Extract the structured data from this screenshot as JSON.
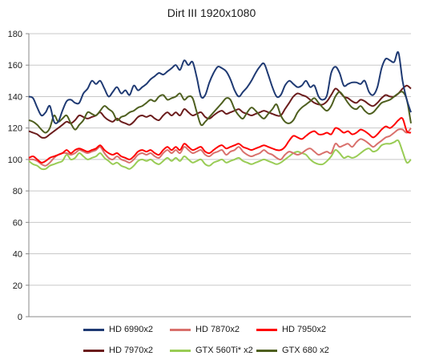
{
  "chart_data": {
    "type": "line",
    "title": "Dirt III 1920x1080",
    "xlabel": "",
    "ylabel": "",
    "ylim": [
      0,
      180
    ],
    "yticks": [
      0,
      20,
      40,
      60,
      80,
      100,
      120,
      140,
      160,
      180
    ],
    "grid": true,
    "legend_position": "bottom",
    "series": [
      {
        "name": "HD 6990x2",
        "color": "#1f3a73",
        "values": [
          140,
          139,
          133,
          128,
          130,
          134,
          124,
          124,
          131,
          137,
          138,
          136,
          136,
          142,
          145,
          150,
          148,
          150,
          145,
          140,
          143,
          146,
          142,
          144,
          141,
          147,
          144,
          146,
          148,
          151,
          153,
          155,
          154,
          156,
          158,
          160,
          157,
          163,
          160,
          162,
          152,
          140,
          141,
          149,
          155,
          159,
          158,
          156,
          151,
          144,
          140,
          143,
          146,
          150,
          155,
          159,
          161,
          154,
          146,
          140,
          141,
          147,
          150,
          148,
          146,
          147,
          150,
          146,
          147,
          140,
          138,
          141,
          155,
          159,
          155,
          147,
          148,
          149,
          149,
          148,
          150,
          143,
          141,
          146,
          158,
          164,
          163,
          162,
          168,
          150,
          138,
          130
        ]
      },
      {
        "name": "HD 7870x2",
        "color": "#d9706c",
        "values": [
          100,
          100,
          99,
          97,
          96,
          98,
          101,
          103,
          104,
          104,
          103,
          104,
          106,
          105,
          104,
          105,
          106,
          108,
          104,
          101,
          100,
          102,
          100,
          99,
          98,
          100,
          103,
          104,
          103,
          104,
          102,
          101,
          104,
          106,
          104,
          106,
          104,
          108,
          106,
          104,
          105,
          106,
          103,
          102,
          104,
          105,
          106,
          103,
          105,
          106,
          108,
          105,
          103,
          102,
          103,
          104,
          106,
          104,
          103,
          101,
          100,
          103,
          105,
          104,
          103,
          104,
          106,
          107,
          105,
          103,
          104,
          105,
          104,
          110,
          108,
          109,
          110,
          108,
          111,
          113,
          112,
          110,
          108,
          110,
          112,
          114,
          115,
          117,
          119,
          119,
          117,
          120
        ]
      },
      {
        "name": "HD 7950x2",
        "color": "#ff0000",
        "values": [
          101,
          102,
          100,
          98,
          99,
          101,
          102,
          103,
          104,
          106,
          104,
          106,
          107,
          106,
          105,
          106,
          107,
          109,
          106,
          104,
          103,
          104,
          102,
          101,
          100,
          102,
          105,
          106,
          105,
          106,
          104,
          103,
          106,
          108,
          106,
          108,
          106,
          110,
          108,
          106,
          107,
          108,
          105,
          104,
          106,
          108,
          109,
          107,
          108,
          109,
          110,
          108,
          107,
          106,
          107,
          108,
          109,
          108,
          107,
          106,
          106,
          108,
          112,
          115,
          114,
          113,
          115,
          117,
          118,
          116,
          116,
          117,
          116,
          120,
          119,
          117,
          118,
          116,
          117,
          119,
          118,
          116,
          114,
          116,
          119,
          121,
          120,
          122,
          125,
          126,
          118,
          117
        ]
      },
      {
        "name": "HD 7970x2",
        "color": "#6b1c1c",
        "values": [
          118,
          117,
          116,
          114,
          114,
          116,
          118,
          120,
          122,
          124,
          123,
          125,
          128,
          127,
          126,
          127,
          128,
          130,
          127,
          125,
          124,
          126,
          124,
          123,
          122,
          124,
          127,
          128,
          127,
          128,
          126,
          125,
          128,
          130,
          128,
          130,
          128,
          132,
          130,
          128,
          129,
          130,
          127,
          126,
          128,
          130,
          131,
          129,
          130,
          131,
          132,
          130,
          129,
          128,
          129,
          130,
          131,
          130,
          129,
          128,
          128,
          132,
          136,
          140,
          142,
          141,
          140,
          138,
          136,
          135,
          135,
          137,
          141,
          145,
          143,
          140,
          139,
          137,
          136,
          138,
          137,
          135,
          134,
          136,
          139,
          141,
          140,
          140,
          142,
          145,
          147,
          145
        ]
      },
      {
        "name": "GTX 560Ti* x2",
        "color": "#99cc55",
        "values": [
          99,
          97,
          96,
          94,
          94,
          96,
          97,
          98,
          99,
          103,
          100,
          101,
          104,
          102,
          100,
          101,
          102,
          104,
          101,
          99,
          97,
          98,
          96,
          95,
          94,
          96,
          99,
          100,
          99,
          100,
          98,
          97,
          99,
          101,
          99,
          101,
          99,
          102,
          100,
          98,
          99,
          100,
          97,
          96,
          98,
          99,
          100,
          98,
          99,
          100,
          101,
          99,
          98,
          97,
          98,
          99,
          100,
          99,
          98,
          97,
          98,
          100,
          102,
          104,
          105,
          104,
          103,
          100,
          98,
          97,
          97,
          99,
          102,
          106,
          104,
          101,
          102,
          101,
          102,
          104,
          106,
          107,
          105,
          106,
          109,
          110,
          110,
          111,
          112,
          105,
          98,
          100
        ]
      },
      {
        "name": "GTX 680 x2",
        "color": "#4e5f1f",
        "values": [
          125,
          124,
          122,
          119,
          117,
          120,
          128,
          124,
          126,
          128,
          123,
          119,
          122,
          125,
          130,
          129,
          128,
          131,
          134,
          132,
          130,
          125,
          127,
          128,
          130,
          131,
          133,
          134,
          136,
          138,
          137,
          140,
          141,
          138,
          139,
          140,
          142,
          138,
          140,
          139,
          130,
          122,
          124,
          127,
          130,
          133,
          136,
          139,
          138,
          132,
          128,
          126,
          130,
          133,
          131,
          128,
          126,
          129,
          132,
          135,
          128,
          124,
          123,
          125,
          130,
          133,
          135,
          137,
          139,
          136,
          133,
          131,
          134,
          140,
          143,
          140,
          136,
          133,
          132,
          134,
          131,
          129,
          130,
          133,
          136,
          137,
          138,
          140,
          142,
          143,
          138,
          123
        ]
      }
    ]
  }
}
